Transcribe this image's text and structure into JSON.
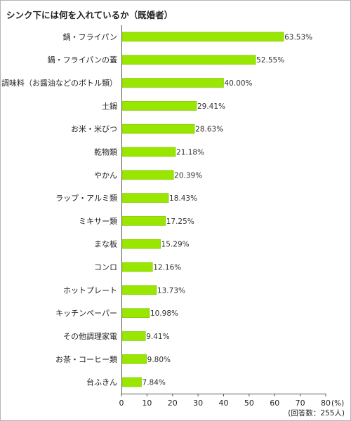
{
  "chart_data": {
    "type": "bar",
    "orientation": "horizontal",
    "title": "シンク下には何を入れているか（既婚者）",
    "categories": [
      "鍋・フライパン",
      "鍋・フライパンの蓋",
      "調味料（お醤油などのボトル類）",
      "土鍋",
      "お米・米びつ",
      "乾物類",
      "やかん",
      "ラップ・アルミ類",
      "ミキサー類",
      "まな板",
      "コンロ",
      "ホットプレート",
      "キッチンペーパー",
      "その他調理家電",
      "お茶・コーヒー類",
      "台ふきん"
    ],
    "values": [
      63.53,
      52.55,
      40.0,
      29.41,
      28.63,
      21.18,
      20.39,
      18.43,
      17.25,
      15.29,
      12.16,
      13.73,
      10.98,
      9.41,
      9.8,
      7.84
    ],
    "value_labels": [
      "63.53%",
      "52.55%",
      "40.00%",
      "29.41%",
      "28.63%",
      "21.18%",
      "20.39%",
      "18.43%",
      "17.25%",
      "15.29%",
      "12.16%",
      "13.73%",
      "10.98%",
      "9.41%",
      "9.80%",
      "7.84%"
    ],
    "xticks": [
      "0",
      "10",
      "20",
      "30",
      "40",
      "50",
      "60",
      "70",
      "80"
    ],
    "xlim": [
      0,
      80
    ],
    "xunit": "(%)",
    "note": "(回答数：255人)",
    "grid": false,
    "legend": "none",
    "bar_color": "#99e600",
    "bar_border_color": "#7cc000"
  }
}
